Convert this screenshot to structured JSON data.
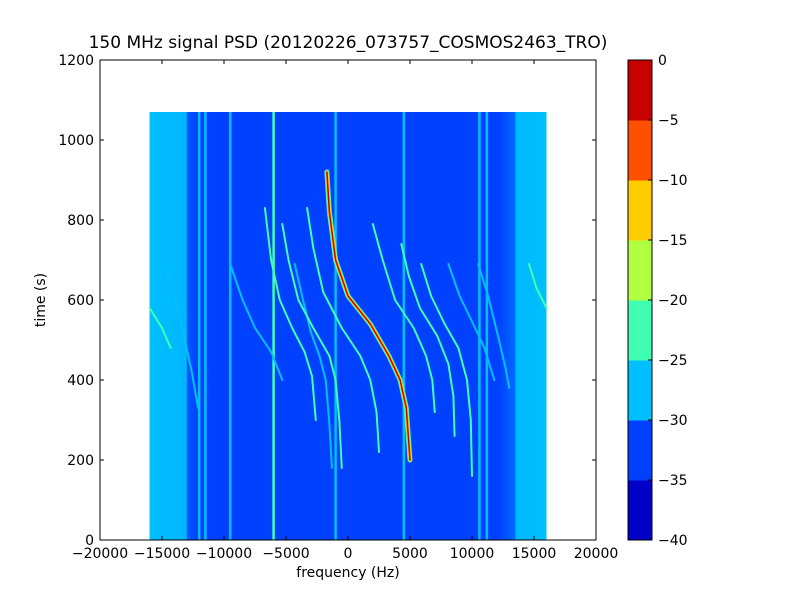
{
  "chart_data": {
    "type": "heatmap",
    "title": "150 MHz signal PSD (20120226_073757_COSMOS2463_TRO)",
    "xlabel": "frequency (Hz)",
    "ylabel": "time (s)",
    "xlim": [
      -20000,
      20000
    ],
    "ylim": [
      0,
      1200
    ],
    "x_ticks": [
      -20000,
      -15000,
      -10000,
      -5000,
      0,
      5000,
      10000,
      15000,
      20000
    ],
    "x_tick_labels": [
      "−20000",
      "−15000",
      "−10000",
      "−5000",
      "0",
      "5000",
      "10000",
      "15000",
      "20000"
    ],
    "y_ticks": [
      0,
      200,
      400,
      600,
      800,
      1000,
      1200
    ],
    "y_tick_labels": [
      "0",
      "200",
      "400",
      "600",
      "800",
      "1000",
      "1200"
    ],
    "data_extent": {
      "x": [
        -16000,
        16000
      ],
      "y": [
        0,
        1070
      ]
    },
    "background_level": -32,
    "edge_band_level": -28,
    "colorbar": {
      "levels": [
        -40,
        -35,
        -30,
        -25,
        -20,
        -15,
        -10,
        -5,
        0
      ],
      "tick_labels": [
        "−40",
        "−35",
        "−30",
        "−25",
        "−20",
        "−15",
        "−10",
        "−5",
        "0"
      ],
      "colors": [
        "#0000c8",
        "#0040ff",
        "#00c0ff",
        "#40ffb0",
        "#b0ff40",
        "#ffcc00",
        "#ff5000",
        "#c80000"
      ]
    },
    "vertical_lines": [
      {
        "x": -12000,
        "level": -27
      },
      {
        "x": -11500,
        "level": -28
      },
      {
        "x": -9500,
        "level": -29
      },
      {
        "x": -6000,
        "level": -23
      },
      {
        "x": -1000,
        "level": -29
      },
      {
        "x": 4500,
        "level": -26
      },
      {
        "x": 10600,
        "level": -27
      },
      {
        "x": 11200,
        "level": -27
      }
    ],
    "curves": [
      {
        "points": [
          [
            -16000,
            580
          ],
          [
            -15000,
            530
          ],
          [
            -14300,
            480
          ]
        ],
        "level": -22
      },
      {
        "points": [
          [
            -14800,
            690
          ],
          [
            -14000,
            610
          ],
          [
            -13300,
            520
          ],
          [
            -12600,
            420
          ],
          [
            -12100,
            330
          ]
        ],
        "level": -26
      },
      {
        "points": [
          [
            -9500,
            690
          ],
          [
            -8500,
            600
          ],
          [
            -7500,
            530
          ],
          [
            -6200,
            470
          ],
          [
            -5300,
            400
          ]
        ],
        "level": -26
      },
      {
        "points": [
          [
            -6700,
            830
          ],
          [
            -6200,
            700
          ],
          [
            -5500,
            600
          ],
          [
            -4500,
            530
          ],
          [
            -3500,
            470
          ],
          [
            -2900,
            410
          ],
          [
            -2600,
            300
          ]
        ],
        "level": -24
      },
      {
        "points": [
          [
            -4300,
            690
          ],
          [
            -3700,
            610
          ],
          [
            -3000,
            520
          ],
          [
            -2300,
            460
          ],
          [
            -1800,
            400
          ],
          [
            -1500,
            290
          ],
          [
            -1300,
            180
          ]
        ],
        "level": -25
      },
      {
        "points": [
          [
            -5300,
            790
          ],
          [
            -4800,
            700
          ],
          [
            -4000,
            600
          ],
          [
            -2800,
            530
          ],
          [
            -1500,
            460
          ],
          [
            -1000,
            400
          ],
          [
            -700,
            300
          ],
          [
            -500,
            180
          ]
        ],
        "level": -22
      },
      {
        "points": [
          [
            -3300,
            830
          ],
          [
            -2800,
            730
          ],
          [
            -2000,
            620
          ],
          [
            -500,
            530
          ],
          [
            1000,
            460
          ],
          [
            1800,
            400
          ],
          [
            2300,
            320
          ],
          [
            2500,
            220
          ]
        ],
        "level": -22
      },
      {
        "points": [
          [
            -1700,
            920
          ],
          [
            -1500,
            820
          ],
          [
            -1000,
            700
          ],
          [
            0,
            610
          ],
          [
            1800,
            540
          ],
          [
            3300,
            460
          ],
          [
            4200,
            400
          ],
          [
            4700,
            330
          ],
          [
            5000,
            200
          ]
        ],
        "level": -3
      },
      {
        "points": [
          [
            2000,
            790
          ],
          [
            2800,
            700
          ],
          [
            3800,
            600
          ],
          [
            5300,
            530
          ],
          [
            6300,
            460
          ],
          [
            6800,
            400
          ],
          [
            7000,
            320
          ]
        ],
        "level": -22
      },
      {
        "points": [
          [
            4300,
            740
          ],
          [
            4900,
            660
          ],
          [
            5800,
            580
          ],
          [
            7200,
            510
          ],
          [
            8100,
            440
          ],
          [
            8500,
            360
          ],
          [
            8600,
            260
          ]
        ],
        "level": -24
      },
      {
        "points": [
          [
            5900,
            690
          ],
          [
            6700,
            610
          ],
          [
            7800,
            540
          ],
          [
            8900,
            480
          ],
          [
            9600,
            400
          ],
          [
            9900,
            300
          ],
          [
            10000,
            160
          ]
        ],
        "level": -23
      },
      {
        "points": [
          [
            8100,
            690
          ],
          [
            9000,
            610
          ],
          [
            10100,
            540
          ],
          [
            11000,
            480
          ],
          [
            11800,
            400
          ]
        ],
        "level": -25
      },
      {
        "points": [
          [
            10500,
            690
          ],
          [
            11300,
            610
          ],
          [
            12100,
            510
          ],
          [
            12700,
            430
          ],
          [
            13000,
            380
          ]
        ],
        "level": -27
      },
      {
        "points": [
          [
            14600,
            690
          ],
          [
            15200,
            630
          ],
          [
            16000,
            580
          ]
        ],
        "level": -24
      }
    ]
  }
}
